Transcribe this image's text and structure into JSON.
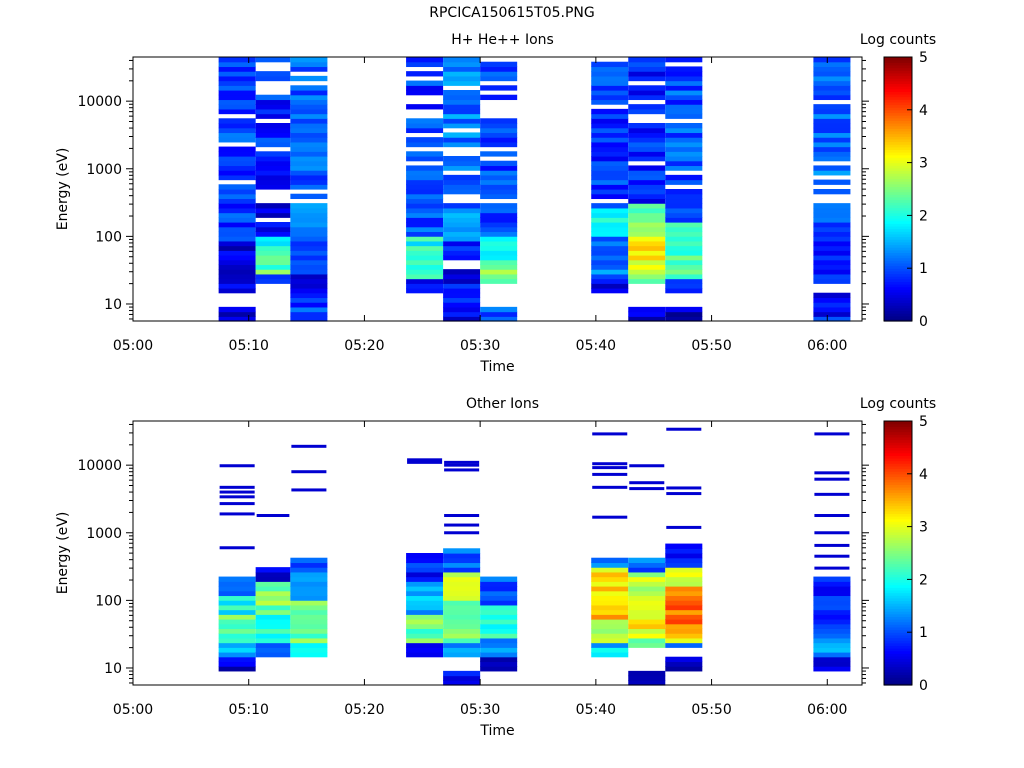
{
  "page": {
    "title": "RPCICA150615T05.PNG"
  },
  "colormap": {
    "stops": [
      "#00007f",
      "#0000ff",
      "#007fff",
      "#00ffff",
      "#7fff7f",
      "#ffff00",
      "#ff7f00",
      "#ff0000",
      "#7f0000"
    ]
  },
  "chart_data": [
    {
      "type": "heatmap",
      "title": "H+ He++ Ions",
      "xlabel": "Time",
      "ylabel": "Energy (eV)",
      "x_ticks": [
        "05:00",
        "05:10",
        "05:20",
        "05:30",
        "05:40",
        "05:50",
        "06:00"
      ],
      "x_tick_minutes": [
        0,
        10,
        20,
        30,
        40,
        50,
        60
      ],
      "xlim_minutes": [
        0,
        63
      ],
      "y_scale": "log",
      "ylim": [
        5.6,
        45000
      ],
      "y_ticks": [
        "10",
        "100",
        "1000",
        "10000"
      ],
      "y_tick_values": [
        10,
        100,
        1000,
        10000
      ],
      "colorbar": {
        "label": "Log counts",
        "ticks": [
          "0",
          "1",
          "2",
          "3",
          "4",
          "5"
        ],
        "range": [
          0,
          5
        ]
      },
      "columns": [
        {
          "x0": 7.4,
          "x1": 10.6,
          "rows": [
            [
              5.6,
              9.5,
              0.4
            ],
            [
              15,
              80,
              0.5
            ],
            [
              80,
              300,
              0.9
            ],
            [
              300,
              3000,
              0.9
            ],
            [
              3000,
              45000,
              1.0
            ]
          ],
          "gaps": [
            [
              620,
              700
            ]
          ]
        },
        {
          "x0": 10.6,
          "x1": 13.6,
          "rows": [
            [
              20,
              27,
              0.8
            ],
            [
              27,
              55,
              2.3
            ],
            [
              55,
              100,
              2.0
            ],
            [
              100,
              1500,
              0.6
            ],
            [
              1500,
              45000,
              0.8
            ]
          ],
          "gaps": [
            [
              160,
              200
            ],
            [
              450,
              520
            ],
            [
              1800,
              2100
            ],
            [
              4500,
              5200
            ],
            [
              12000,
              20000
            ],
            [
              30000,
              36000
            ]
          ]
        },
        {
          "x0": 13.6,
          "x1": 16.8,
          "rows": [
            [
              5.6,
              9.5,
              1.0
            ],
            [
              9.5,
              15,
              0.9
            ],
            [
              15,
              30,
              0.4
            ],
            [
              30,
              100,
              0.9
            ],
            [
              100,
              45000,
              1.1
            ]
          ],
          "gaps": [
            [
              25000,
              28000
            ]
          ]
        },
        {
          "x0": 23.6,
          "x1": 26.8,
          "rows": [
            [
              15,
              22,
              0.8
            ],
            [
              22,
              60,
              2.3
            ],
            [
              60,
              100,
              2.0
            ],
            [
              100,
              300,
              1.0
            ],
            [
              300,
              45000,
              0.9
            ]
          ],
          "gaps": [
            [
              3000,
              3400
            ],
            [
              9000,
              10500
            ],
            [
              20000,
              24000
            ],
            [
              30000,
              35000
            ]
          ]
        },
        {
          "x0": 26.8,
          "x1": 30.0,
          "rows": [
            [
              5.6,
              15,
              0.6
            ],
            [
              15,
              35,
              0.6
            ],
            [
              45,
              80,
              0.8
            ],
            [
              80,
              250,
              1.4
            ],
            [
              250,
              45000,
              1.2
            ]
          ],
          "gaps": [
            [
              35,
              45
            ],
            [
              330,
              380
            ]
          ]
        },
        {
          "x0": 30.0,
          "x1": 33.2,
          "rows": [
            [
              5.6,
              9.5,
              1.0
            ],
            [
              20,
              45,
              2.5
            ],
            [
              45,
              100,
              2.0
            ],
            [
              100,
              500,
              0.9
            ],
            [
              500,
              40000,
              0.9
            ]
          ],
          "gaps": [
            [
              1800,
              2200
            ],
            [
              6000,
              7500
            ],
            [
              12000,
              15000
            ]
          ]
        },
        {
          "x0": 39.6,
          "x1": 42.8,
          "rows": [
            [
              15,
              22,
              0.6
            ],
            [
              22,
              100,
              1.2
            ],
            [
              100,
              250,
              2.0
            ],
            [
              250,
              45000,
              0.9
            ]
          ],
          "gaps": [
            [
              8000,
              9000
            ]
          ]
        },
        {
          "x0": 42.8,
          "x1": 46.0,
          "rows": [
            [
              5.6,
              9.5,
              0.4
            ],
            [
              20,
              28,
              2.6
            ],
            [
              28,
              100,
              3.1
            ],
            [
              100,
              300,
              2.4
            ],
            [
              300,
              45000,
              0.8
            ]
          ],
          "gaps": [
            [
              9.5,
              20
            ],
            [
              5000,
              6500
            ],
            [
              26000,
              30000
            ]
          ]
        },
        {
          "x0": 46.0,
          "x1": 49.2,
          "rows": [
            [
              5.6,
              9.5,
              0.4
            ],
            [
              15,
              25,
              1.0
            ],
            [
              25,
              60,
              2.2
            ],
            [
              60,
              160,
              2.0
            ],
            [
              160,
              45000,
              1.0
            ]
          ],
          "gaps": [
            [
              9.5,
              15
            ]
          ]
        },
        {
          "x0": 58.8,
          "x1": 62.0,
          "rows": [
            [
              5.6,
              15,
              0.7
            ],
            [
              20,
              150,
              0.8
            ],
            [
              150,
              45000,
              1.1
            ]
          ],
          "gaps": [
            [
              15,
              20
            ],
            [
              300,
              340
            ]
          ]
        }
      ]
    },
    {
      "type": "heatmap",
      "title": "Other Ions",
      "xlabel": "Time",
      "ylabel": "Energy (eV)",
      "x_ticks": [
        "05:00",
        "05:10",
        "05:20",
        "05:30",
        "05:40",
        "05:50",
        "06:00"
      ],
      "x_tick_minutes": [
        0,
        10,
        20,
        30,
        40,
        50,
        60
      ],
      "xlim_minutes": [
        0,
        63
      ],
      "y_scale": "log",
      "ylim": [
        5.6,
        45000
      ],
      "y_ticks": [
        "10",
        "100",
        "1000",
        "10000"
      ],
      "y_tick_values": [
        10,
        100,
        1000,
        10000
      ],
      "colorbar": {
        "label": "Log counts",
        "ticks": [
          "0",
          "1",
          "2",
          "3",
          "4",
          "5"
        ],
        "range": [
          0,
          5
        ]
      },
      "columns": [
        {
          "x0": 7.4,
          "x1": 10.6,
          "rows": [
            [
              9.5,
              15,
              0.5
            ],
            [
              15,
              25,
              1.6
            ],
            [
              25,
              60,
              2.4
            ],
            [
              60,
              120,
              1.9
            ],
            [
              120,
              220,
              0.9
            ]
          ],
          "lines": [
            600,
            1900,
            2700,
            3400,
            4000,
            4700,
            9800
          ]
        },
        {
          "x0": 10.6,
          "x1": 13.6,
          "rows": [
            [
              15,
              25,
              1.2
            ],
            [
              25,
              60,
              2.1
            ],
            [
              60,
              200,
              2.5
            ],
            [
              200,
              300,
              0.5
            ]
          ],
          "lines": [
            1800
          ]
        },
        {
          "x0": 13.6,
          "x1": 16.8,
          "rows": [
            [
              15,
              25,
              2.1
            ],
            [
              25,
              100,
              2.4
            ],
            [
              100,
              250,
              1.5
            ],
            [
              250,
              450,
              0.9
            ]
          ],
          "lines": [
            4300,
            8000,
            19000
          ]
        },
        {
          "x0": 23.6,
          "x1": 26.8,
          "rows": [
            [
              15,
              22,
              0.7
            ],
            [
              22,
              60,
              2.4
            ],
            [
              60,
              200,
              1.5
            ],
            [
              200,
              500,
              0.7
            ]
          ],
          "lines": [
            11000,
            12000
          ]
        },
        {
          "x0": 26.8,
          "x1": 30.0,
          "rows": [
            [
              5.6,
              9.5,
              0.6
            ],
            [
              15,
              25,
              1.5
            ],
            [
              25,
              100,
              2.4
            ],
            [
              100,
              250,
              2.7
            ],
            [
              250,
              600,
              1.1
            ]
          ],
          "lines": [
            1000,
            1300,
            1800,
            8500,
            10000,
            11000
          ]
        },
        {
          "x0": 30.0,
          "x1": 33.2,
          "rows": [
            [
              9.5,
              15,
              0.4
            ],
            [
              15,
              30,
              1.5
            ],
            [
              30,
              80,
              2.1
            ],
            [
              80,
              220,
              1.0
            ]
          ],
          "lines": []
        },
        {
          "x0": 39.6,
          "x1": 42.8,
          "rows": [
            [
              15,
              22,
              1.6
            ],
            [
              22,
              50,
              2.8
            ],
            [
              50,
              100,
              3.4
            ],
            [
              100,
              300,
              3.2
            ],
            [
              300,
              450,
              1.4
            ]
          ],
          "lines": [
            1700,
            4700,
            7300,
            9200,
            10500,
            29000
          ]
        },
        {
          "x0": 42.8,
          "x1": 46.0,
          "rows": [
            [
              5.6,
              9.5,
              0.5
            ],
            [
              20,
              30,
              2.4
            ],
            [
              30,
              120,
              3.1
            ],
            [
              120,
              250,
              2.8
            ],
            [
              250,
              420,
              1.1
            ]
          ],
          "lines": [
            4500,
            5500,
            9800
          ]
        },
        {
          "x0": 46.0,
          "x1": 49.2,
          "rows": [
            [
              9.5,
              15,
              0.4
            ],
            [
              20,
              25,
              1.4
            ],
            [
              25,
              40,
              3.3
            ],
            [
              40,
              160,
              3.9
            ],
            [
              160,
              300,
              3.0
            ],
            [
              300,
              700,
              0.8
            ]
          ],
          "lines": [
            1200,
            3800,
            4600,
            34000
          ]
        },
        {
          "x0": 58.8,
          "x1": 62.0,
          "rows": [
            [
              9.5,
              15,
              0.6
            ],
            [
              15,
              30,
              1.5
            ],
            [
              30,
              80,
              1.0
            ],
            [
              80,
              220,
              0.8
            ]
          ],
          "lines": [
            300,
            450,
            650,
            1000,
            1800,
            3700,
            6200,
            7700,
            29000
          ]
        }
      ]
    }
  ]
}
